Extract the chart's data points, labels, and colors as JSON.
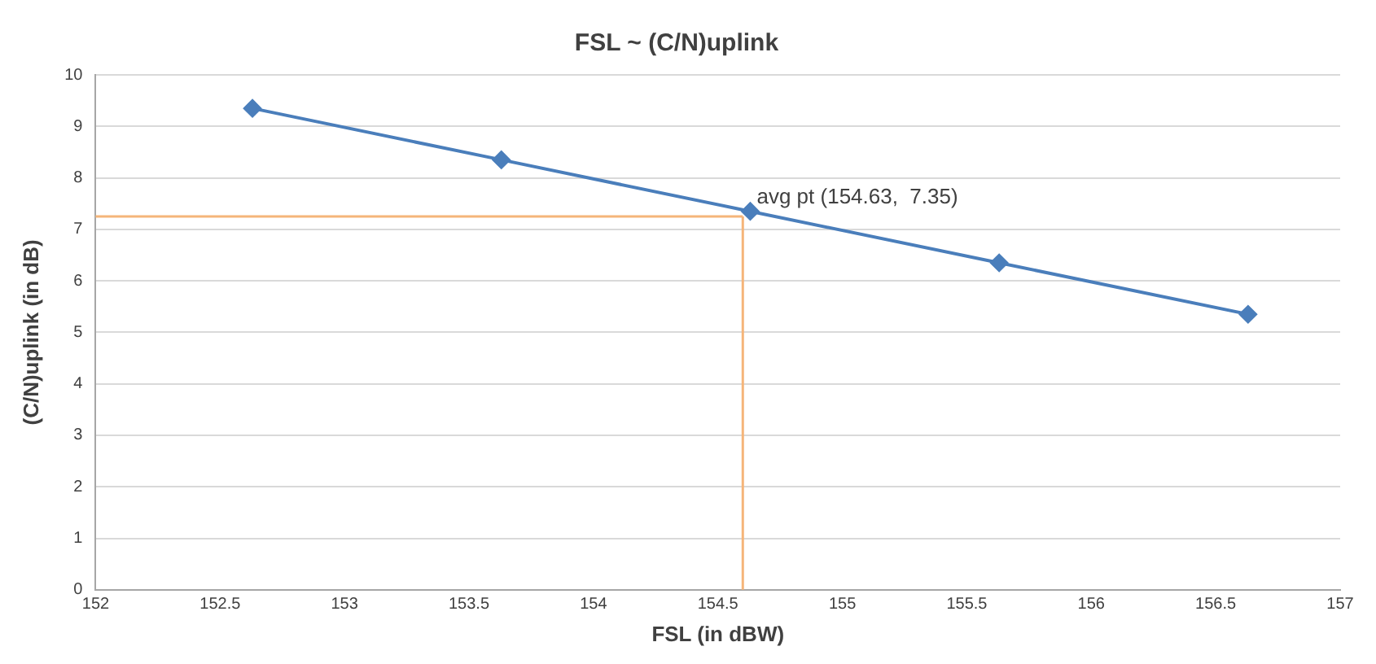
{
  "chart_data": {
    "type": "line",
    "title": "FSL ~ (C/N)uplink",
    "xlabel": "FSL (in dBW)",
    "ylabel": "(C/N)uplink (in dB)",
    "x": [
      152.63,
      153.63,
      154.63,
      155.63,
      156.63
    ],
    "series": [
      {
        "color": "#4a7ebb",
        "values": [
          9.35,
          8.35,
          7.35,
          6.35,
          5.35
        ]
      }
    ],
    "xlim": [
      152,
      157
    ],
    "xticks": [
      152,
      152.5,
      153,
      153.5,
      154,
      154.5,
      155,
      155.5,
      156,
      156.5,
      157
    ],
    "ylim": [
      0,
      10
    ],
    "yticks": [
      0,
      1,
      2,
      3,
      4,
      5,
      6,
      7,
      8,
      9,
      10
    ],
    "grid": "y",
    "legend": false,
    "marker": "diamond",
    "line_style": "solid",
    "ref_lines": [
      {
        "axis": "x",
        "value": 154.6,
        "color": "#f5b57a"
      },
      {
        "axis": "y",
        "value": 7.25,
        "color": "#f5b57a"
      }
    ],
    "annotations": [
      {
        "text": "avg pt (154.63,  7.35)",
        "x": 154.63,
        "y": 7.35
      }
    ]
  }
}
